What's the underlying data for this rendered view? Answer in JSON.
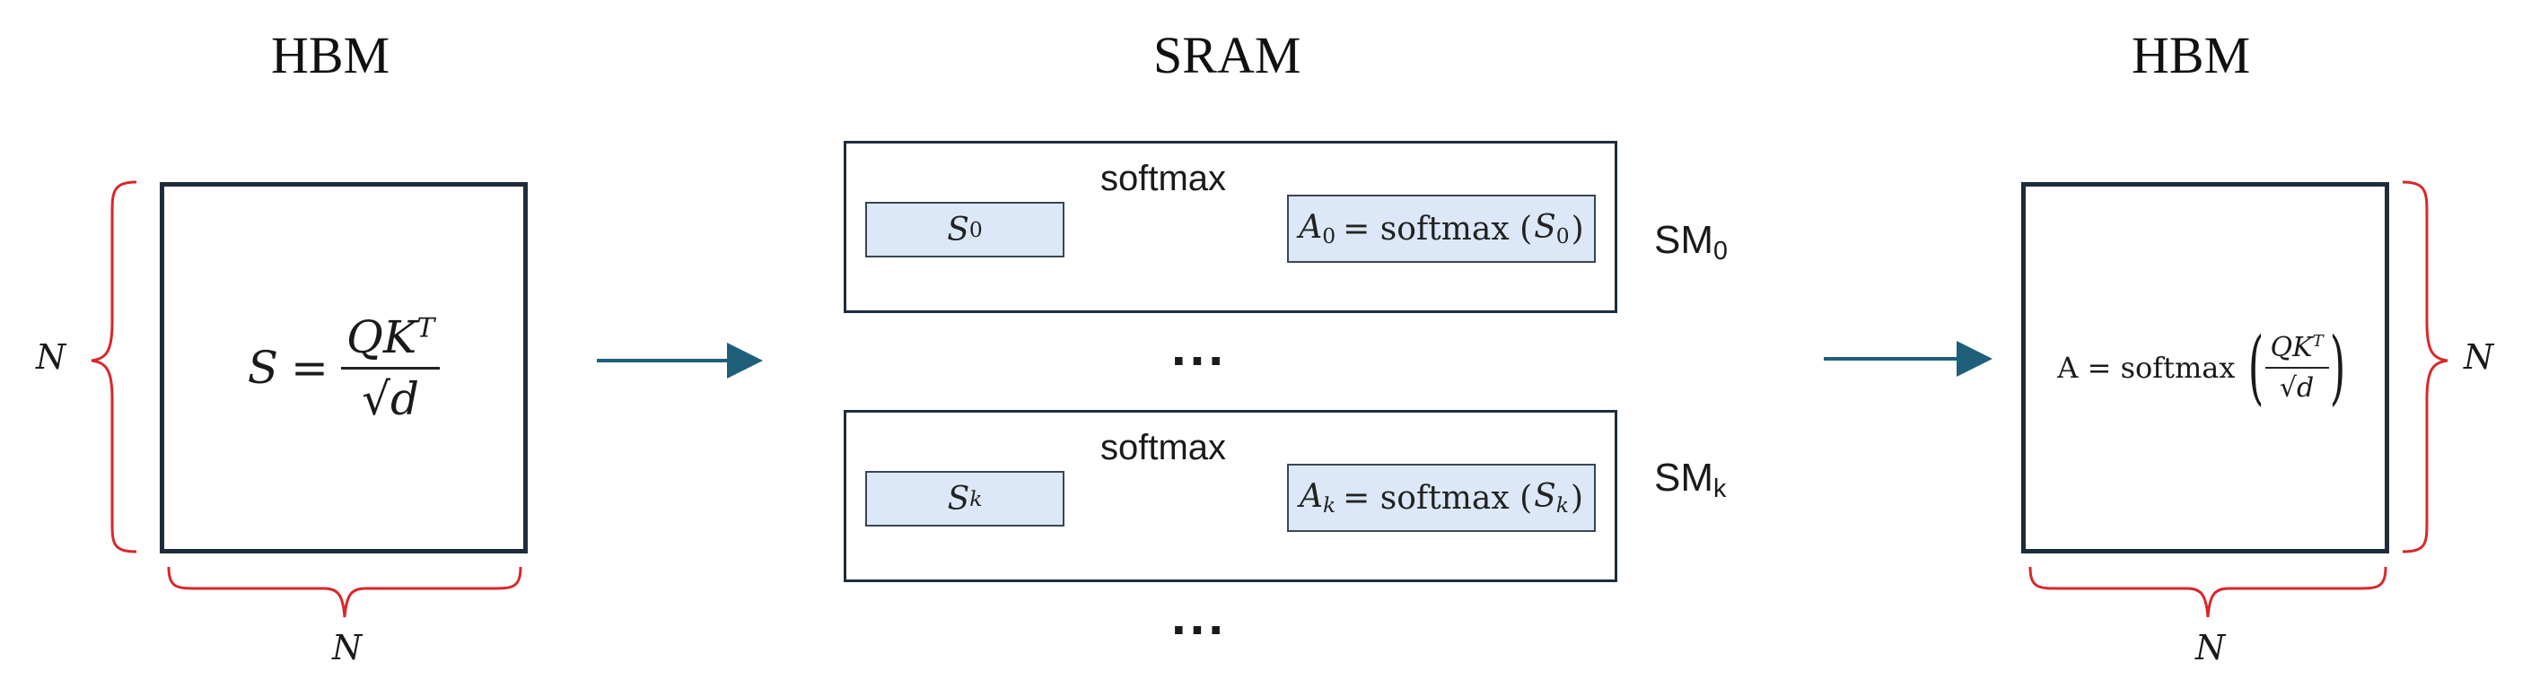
{
  "titles": {
    "left": "HBM",
    "middle": "SRAM",
    "right": "HBM"
  },
  "left_matrix": {
    "lhs": "S",
    "equals": "=",
    "numerator": "QK",
    "numerator_sup": "T",
    "denominator": "d",
    "dim_vertical": "N",
    "dim_horizontal": "N"
  },
  "sm_blocks": [
    {
      "input_base": "S",
      "input_sub": "0",
      "op_label": "softmax",
      "output_base": "A",
      "output_sub": "0",
      "output_eq": "= softmax (",
      "output_arg_base": "S",
      "output_arg_sub": "0",
      "output_close": ")",
      "sm_label": "SM",
      "sm_sub": "0"
    },
    {
      "input_base": "S",
      "input_sub": "k",
      "op_label": "softmax",
      "output_base": "A",
      "output_sub": "k",
      "output_eq": "= softmax (",
      "output_arg_base": "S",
      "output_arg_sub": "k",
      "output_close": ")",
      "sm_label": "SM",
      "sm_sub": "k"
    }
  ],
  "ellipsis": "...",
  "right_matrix": {
    "lhs": "A = softmax",
    "numerator": "QK",
    "numerator_sup": "T",
    "denominator": "d",
    "dim_vertical": "N",
    "dim_horizontal": "N"
  },
  "colors": {
    "box_border": "#1f2d3a",
    "cell_fill": "#dce8f7",
    "arrow": "#1f5f7a",
    "brace": "#d9262a"
  }
}
